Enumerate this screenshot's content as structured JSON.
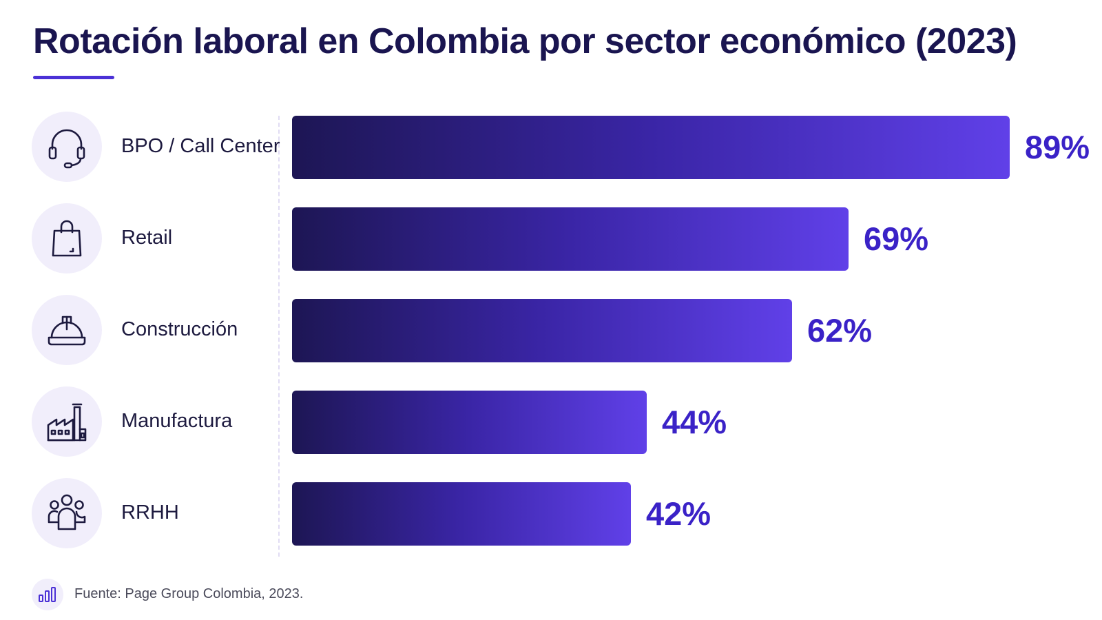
{
  "title": "Rotación laboral en Colombia por sector económico (2023)",
  "source": "Fuente: Page Group Colombia, 2023.",
  "colors": {
    "title": "#1a1550",
    "accent": "#4b31d6",
    "bar_start": "#1d1654",
    "bar_end": "#6040e8",
    "value_text": "#3a22c7",
    "icon_circle": "#f1eefb"
  },
  "chart_data": {
    "type": "bar",
    "orientation": "horizontal",
    "title": "Rotación laboral en Colombia por sector económico (2023)",
    "categories": [
      "BPO / Call Center",
      "Retail",
      "Construcción",
      "Manufactura",
      "RRHH"
    ],
    "values": [
      89,
      69,
      62,
      44,
      42
    ],
    "value_labels": [
      "89%",
      "69%",
      "62%",
      "44%",
      "42%"
    ],
    "unit": "%",
    "icons": [
      "headset-icon",
      "shopping-bag-icon",
      "hard-hat-icon",
      "factory-icon",
      "people-group-icon"
    ],
    "xlim": [
      0,
      89
    ],
    "grid": false,
    "legend": "none"
  }
}
